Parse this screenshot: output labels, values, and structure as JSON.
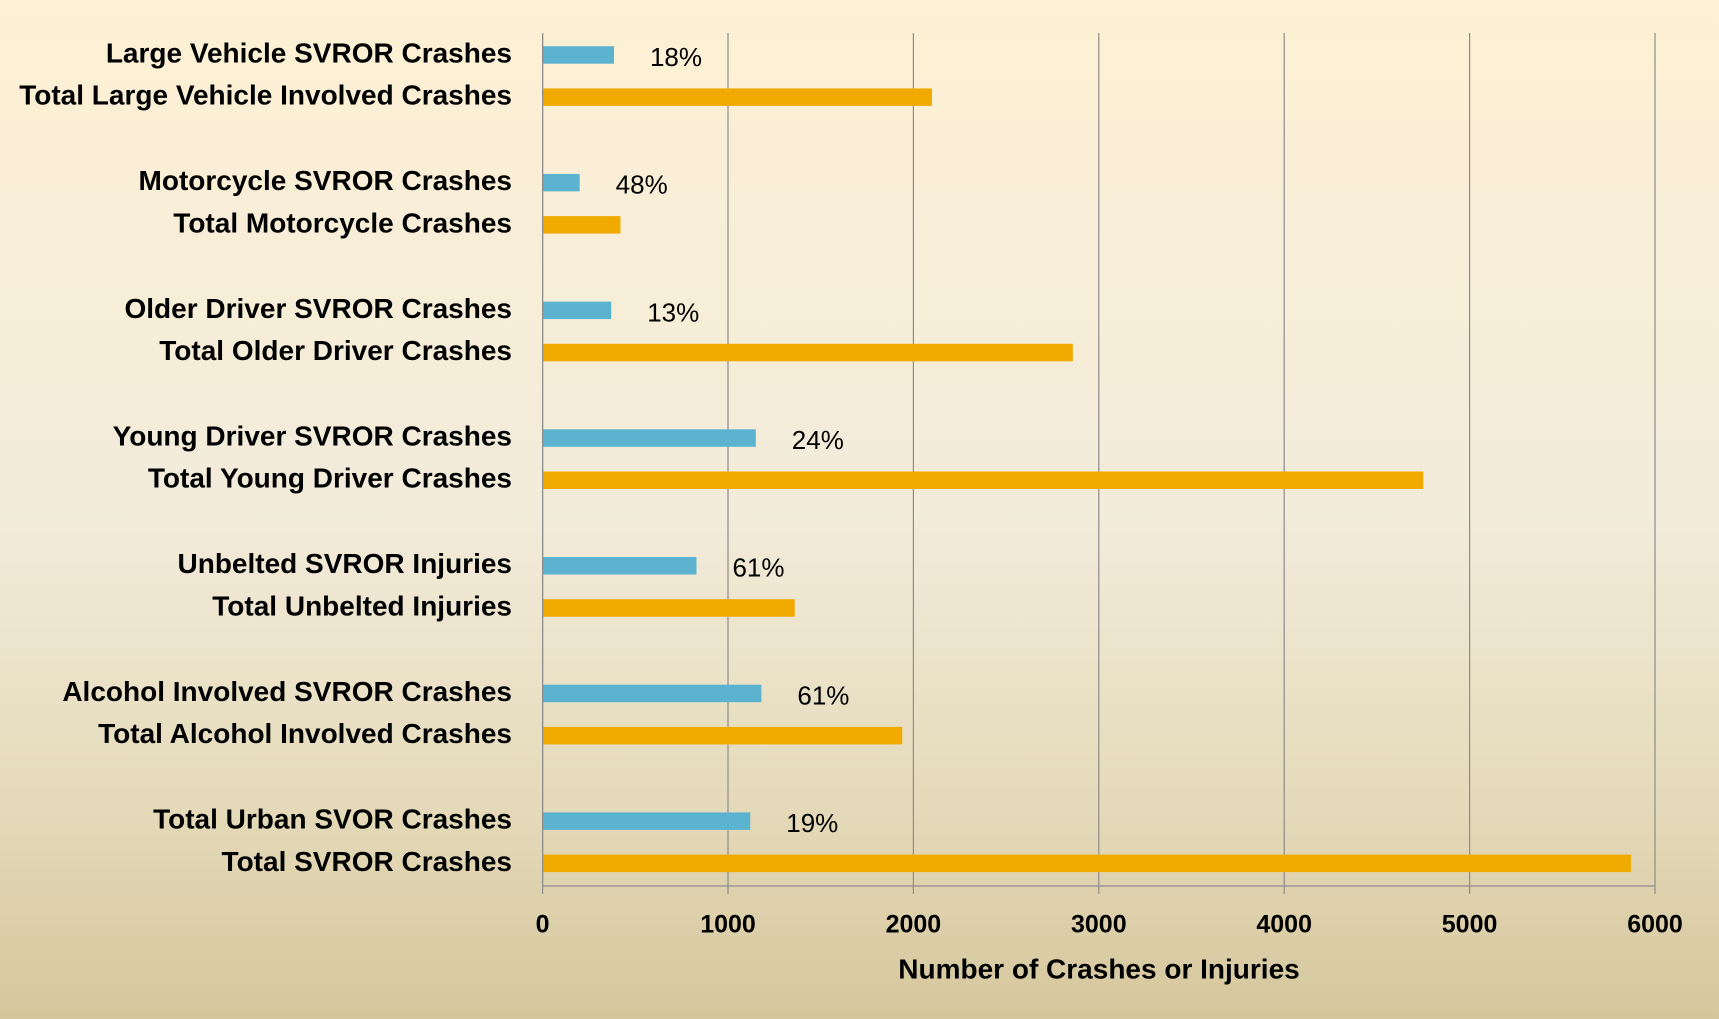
{
  "chart_data": {
    "type": "bar",
    "orientation": "horizontal",
    "x_label": "Number of Crashes or Injuries",
    "categories": [
      "Large Vehicle SVROR Crashes",
      "Total Large Vehicle Involved Crashes",
      "Motorcycle SVROR Crashes",
      "Total Motorcycle Crashes",
      "Older Driver SVROR Crashes",
      "Total Older Driver Crashes",
      "Young Driver SVROR Crashes",
      "Total Young Driver Crashes",
      "Unbelted SVROR Injuries",
      "Total Unbelted Injuries",
      "Alcohol Involved SVROR Crashes",
      "Total Alcohol Involved Crashes",
      "Total Urban SVOR Crashes",
      "Total SVROR Crashes"
    ],
    "values": [
      385,
      2100,
      200,
      420,
      370,
      2860,
      1150,
      4750,
      830,
      1360,
      1180,
      1940,
      1120,
      5870
    ],
    "colors": [
      "#5bb3d0",
      "#f0aa00",
      "#5bb3d0",
      "#f0aa00",
      "#5bb3d0",
      "#f0aa00",
      "#5bb3d0",
      "#f0aa00",
      "#5bb3d0",
      "#f0aa00",
      "#5bb3d0",
      "#f0aa00",
      "#5bb3d0",
      "#f0aa00"
    ],
    "annotations": [
      "18%",
      "48%",
      "13%",
      "24%",
      "61%",
      "61%",
      "19%"
    ],
    "xlim": [
      0,
      6000
    ],
    "xticks": [
      0,
      1000,
      2000,
      3000,
      4000,
      5000,
      6000
    ],
    "grid": true
  }
}
